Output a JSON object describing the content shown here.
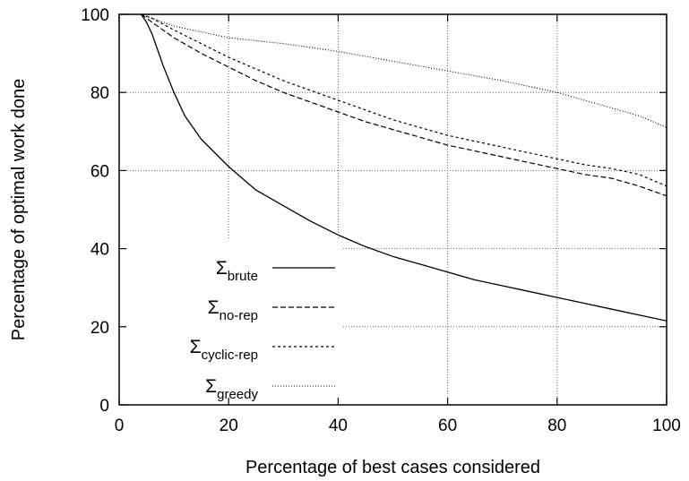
{
  "chart_data": {
    "type": "line",
    "xlabel": "Percentage of best cases considered",
    "ylabel": "Percentage of optimal work done",
    "xlim": [
      0,
      100
    ],
    "ylim": [
      0,
      100
    ],
    "xticks": [
      0,
      20,
      40,
      60,
      80,
      100
    ],
    "yticks": [
      0,
      20,
      40,
      60,
      80,
      100
    ],
    "grid": true,
    "legend_position": "lower-left",
    "series": [
      {
        "name": "Σ",
        "subscript": "brute",
        "dash": "solid",
        "x": [
          4,
          5,
          6,
          7,
          8,
          10,
          12,
          15,
          20,
          25,
          30,
          35,
          40,
          45,
          50,
          55,
          60,
          65,
          70,
          75,
          80,
          85,
          90,
          95,
          100
        ],
        "y": [
          100,
          98,
          95,
          91,
          87,
          80,
          74,
          68,
          61,
          55,
          51,
          47,
          43.5,
          40.5,
          38,
          36,
          34,
          32,
          30.5,
          29,
          27.5,
          26,
          24.5,
          23,
          21.5
        ]
      },
      {
        "name": "Σ",
        "subscript": "no-rep",
        "dash": "dashed",
        "x": [
          4,
          6,
          8,
          10,
          15,
          20,
          25,
          30,
          35,
          40,
          45,
          50,
          55,
          60,
          65,
          70,
          75,
          80,
          85,
          90,
          95,
          100
        ],
        "y": [
          100,
          98,
          96,
          94,
          90,
          86.5,
          83,
          80,
          77.5,
          75,
          72.5,
          70.5,
          68.5,
          66.5,
          65,
          63.5,
          62,
          60.5,
          59,
          58,
          56,
          53.5
        ]
      },
      {
        "name": "Σ",
        "subscript": "cyclic-rep",
        "dash": "dotted",
        "x": [
          4,
          6,
          8,
          10,
          15,
          20,
          25,
          30,
          35,
          40,
          45,
          50,
          55,
          60,
          65,
          70,
          75,
          80,
          85,
          90,
          95,
          100
        ],
        "y": [
          100,
          99,
          97.5,
          96,
          92.5,
          89,
          86,
          83,
          80.5,
          78,
          75.5,
          73,
          71,
          69,
          67.5,
          66,
          64.5,
          63,
          61.5,
          60.5,
          59,
          56
        ]
      },
      {
        "name": "Σ",
        "subscript": "greedy",
        "dash": "fine-dotted",
        "x": [
          4,
          6,
          8,
          10,
          15,
          20,
          30,
          40,
          50,
          60,
          70,
          80,
          85,
          90,
          95,
          100
        ],
        "y": [
          100,
          99,
          98,
          97,
          95.5,
          94,
          92.5,
          90.5,
          88,
          85.5,
          83,
          80,
          78,
          76,
          74,
          71
        ]
      }
    ]
  }
}
